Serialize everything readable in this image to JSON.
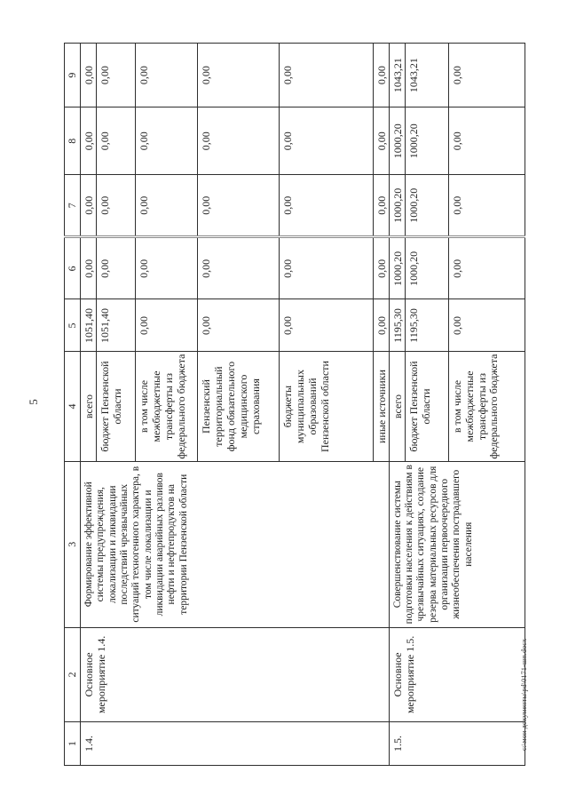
{
  "page": {
    "number": "5",
    "footer_path": "с:\\мои документы\\pd\\0171-шп.docx"
  },
  "table": {
    "header_numbers": [
      "1",
      "2",
      "3",
      "4",
      "5",
      "6",
      "7",
      "8",
      "9"
    ],
    "groups": [
      {
        "code": "1.4.",
        "name": "Основное мероприятие 1.4.",
        "description": "Формирование эффективной системы предупреждения, локализации и ликвидации последствий чрезвычайных ситуаций техногенного характера, в том числе локализации и ликвидации аварийных разливов нефти и нефтепродуктов на территории Пензенской области",
        "rows": [
          {
            "source": "всего",
            "values": [
              "1051,40",
              "0,00",
              "0,00",
              "0,00",
              "0,00"
            ]
          },
          {
            "source": "бюджет Пензенской области",
            "values": [
              "1051,40",
              "0,00",
              "0,00",
              "0,00",
              "0,00"
            ]
          },
          {
            "source": "в том числе межбюджетные трансферты из федерального бюджета",
            "values": [
              "0,00",
              "0,00",
              "0,00",
              "0,00",
              "0,00"
            ]
          },
          {
            "source": "Пензенский территориальный фонд обязательного медицинского страхования",
            "values": [
              "0,00",
              "0,00",
              "0,00",
              "0,00",
              "0,00"
            ]
          },
          {
            "source": "бюджеты муниципальных образований Пензенской области",
            "values": [
              "0,00",
              "0,00",
              "0,00",
              "0,00",
              "0,00"
            ]
          },
          {
            "source": "иные источники",
            "values": [
              "0,00",
              "0,00",
              "0,00",
              "0,00",
              "0,00"
            ]
          }
        ]
      },
      {
        "code": "1.5.",
        "name": "Основное мероприятие 1.5.",
        "description": "Совершенствование системы подготовки населения к действиям в чрезвычайных ситуациях, создание резерва материальных ресурсов для организации первоочередного жизнеобеспечения пострадавшего населения",
        "rows": [
          {
            "source": "всего",
            "values": [
              "1195,30",
              "1000,20",
              "1000,20",
              "1000,20",
              "1043,21"
            ]
          },
          {
            "source": "бюджет Пензенской области",
            "values": [
              "1195,30",
              "1000,20",
              "1000,20",
              "1000,20",
              "1043,21"
            ]
          },
          {
            "source": "в том числе межбюджетные трансферты из федерального бюджета",
            "values": [
              "0,00",
              "0,00",
              "0,00",
              "0,00",
              "0,00"
            ]
          }
        ]
      }
    ]
  }
}
